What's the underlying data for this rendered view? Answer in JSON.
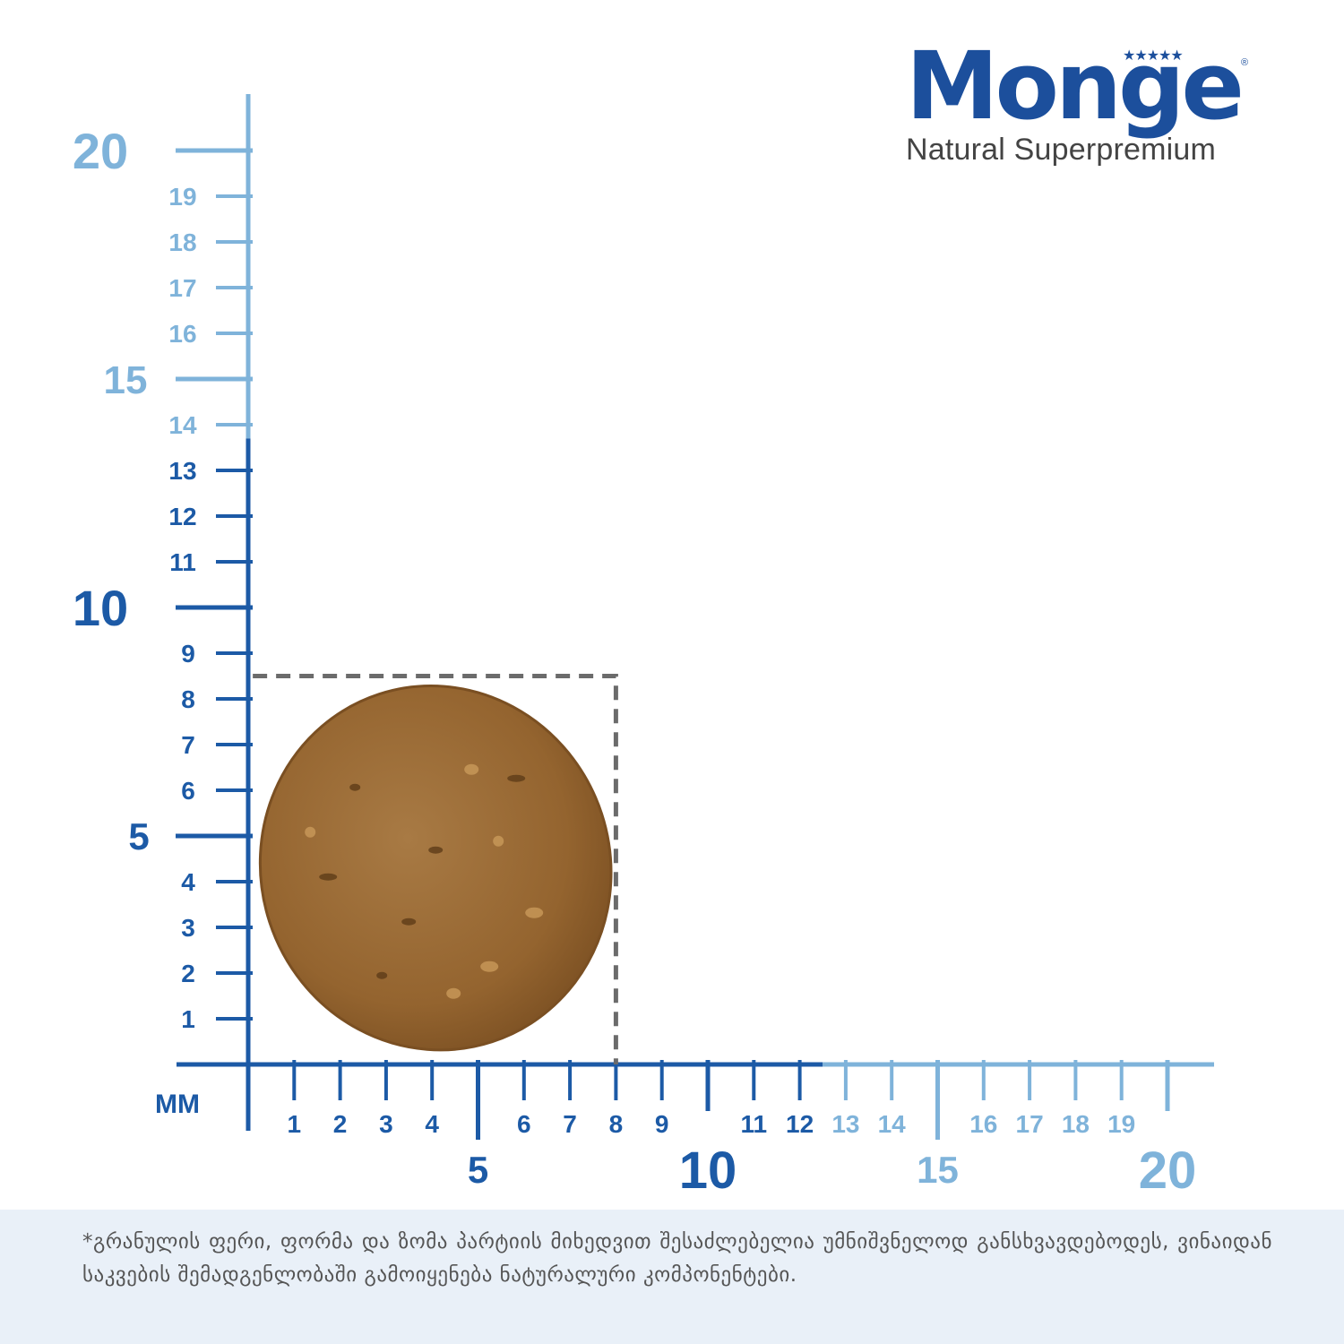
{
  "logo": {
    "brand": "Monge",
    "stars": "★★★★★",
    "registered": "®",
    "tagline": "Natural Superpremium"
  },
  "ruler": {
    "unit_label": "MM",
    "max_mm": 20,
    "kibble_width_mm": 8,
    "kibble_height_mm": 8.5,
    "vertical_labels": [
      "1",
      "2",
      "3",
      "4",
      "5",
      "6",
      "7",
      "8",
      "9",
      "10",
      "11",
      "12",
      "13",
      "14",
      "15",
      "16",
      "17",
      "18",
      "19",
      "20"
    ],
    "horizontal_labels": [
      "1",
      "2",
      "3",
      "4",
      "5",
      "6",
      "7",
      "8",
      "9",
      "10",
      "11",
      "12",
      "13",
      "14",
      "15",
      "16",
      "17",
      "18",
      "19",
      "20"
    ],
    "colors": {
      "dark_blue": "#1c5aa6",
      "light_blue": "#7fb3da",
      "dashed_box": "#6b6b6b",
      "kibble_fill": "#9b6a33",
      "kibble_edge": "#7a4f22"
    }
  },
  "footer": {
    "note": "*გრანულის ფერი, ფორმა და ზომა პარტიის მიხედვით შესაძლებელია უმნიშვნელოდ განსხვავდებოდეს,  ვინაიდან საკვების შემადგენლობაში გამოიყენება ნატურალური კომპონენტები."
  }
}
